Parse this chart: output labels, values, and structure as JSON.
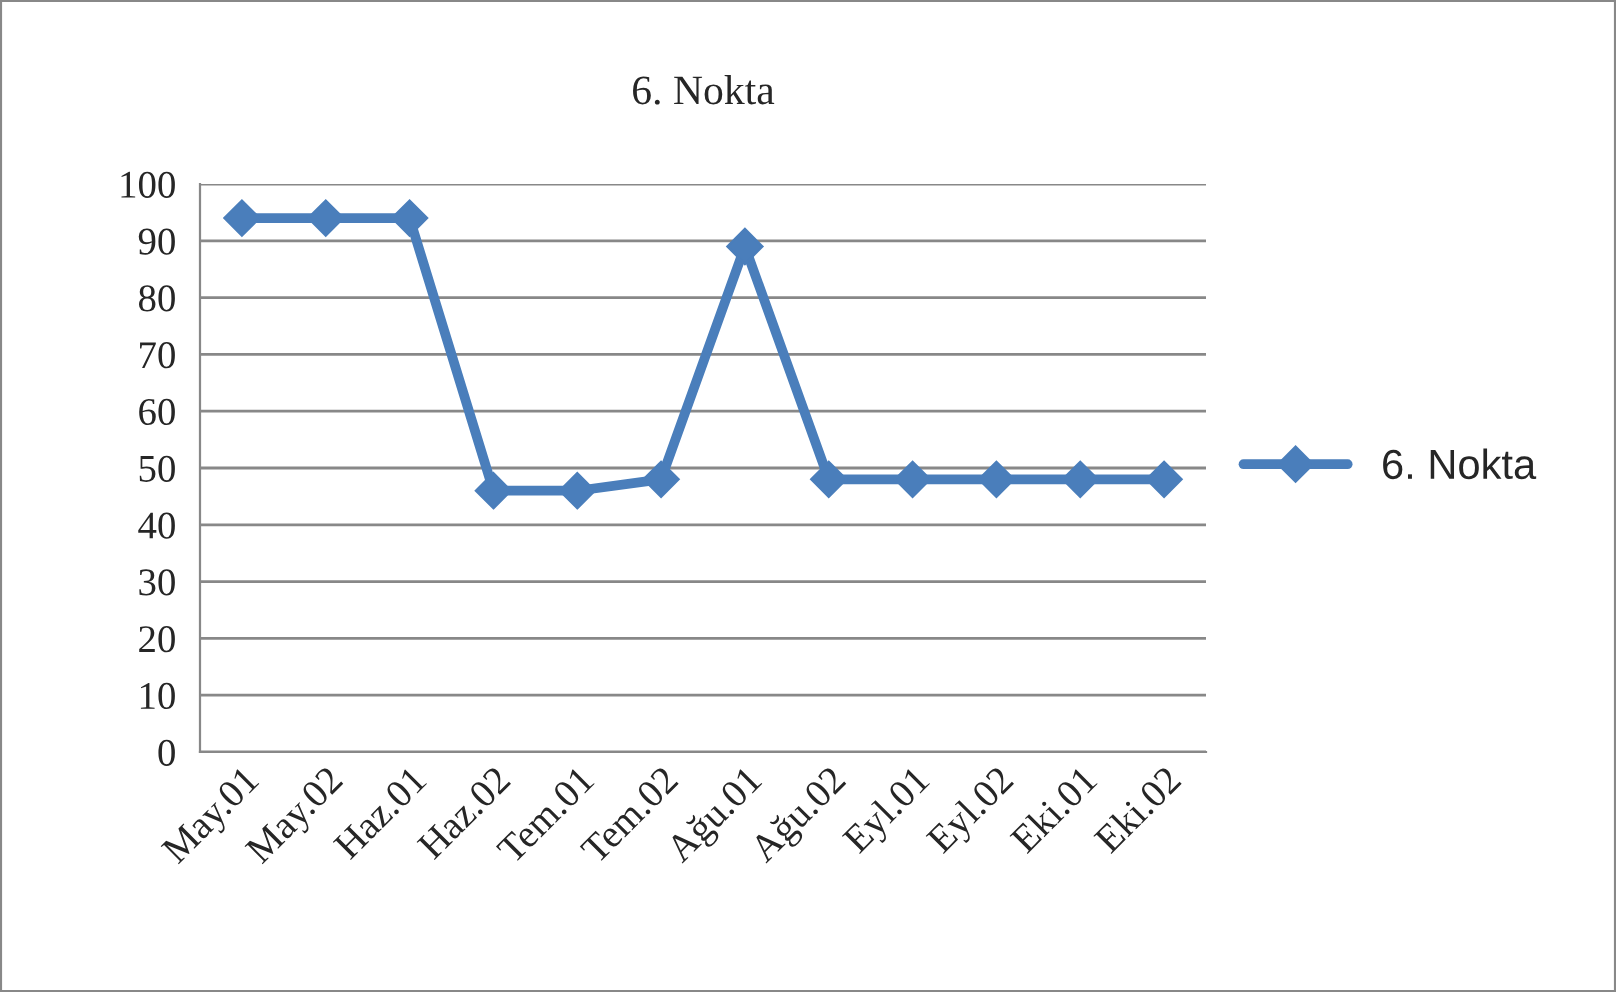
{
  "chart_data": {
    "type": "line",
    "title": "6. Nokta",
    "categories": [
      "May.01",
      "May.02",
      "Haz.01",
      "Haz.02",
      "Tem.01",
      "Tem.02",
      "Ağu.01",
      "Ağu.02",
      "Eyl.01",
      "Eyl.02",
      "Eki.01",
      "Eki.02"
    ],
    "series": [
      {
        "name": "6. Nokta",
        "color": "#4a7ebb",
        "values": [
          94,
          94,
          94,
          46,
          46,
          48,
          89,
          48,
          48,
          48,
          48,
          48
        ]
      }
    ],
    "ylim": [
      0,
      100
    ],
    "yticks": [
      0,
      10,
      20,
      30,
      40,
      50,
      60,
      70,
      80,
      90,
      100
    ],
    "grid": "y",
    "legend": "right",
    "marker": "diamond",
    "line_style": "solid"
  }
}
